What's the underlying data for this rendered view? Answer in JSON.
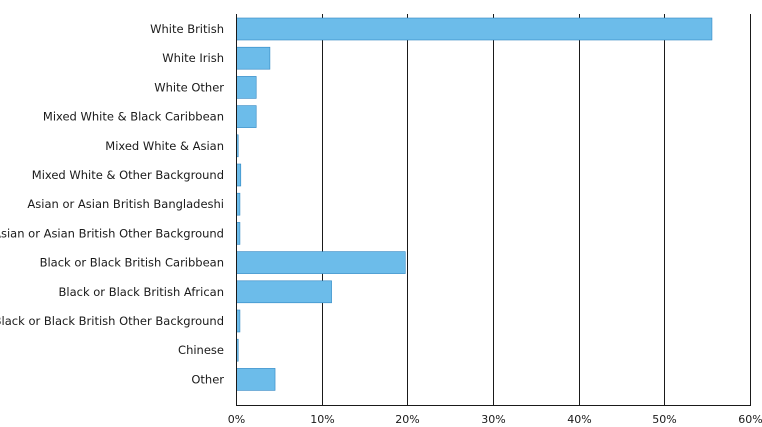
{
  "chart_data": {
    "type": "bar",
    "orientation": "horizontal",
    "title": "",
    "xlabel": "",
    "ylabel": "",
    "categories": [
      "White British",
      "White Irish",
      "White Other",
      "Mixed White & Black Caribbean",
      "Mixed White & Asian",
      "Mixed White & Other Background",
      "Asian or Asian British Bangladeshi",
      "Asian or Asian British Other Background",
      "Black or Black British Caribbean",
      "Black or Black British African",
      "Black or Black British Other Background",
      "Chinese",
      "Other"
    ],
    "values": [
      55.5,
      3.9,
      2.3,
      2.3,
      0.2,
      0.5,
      0.4,
      0.4,
      19.7,
      11.1,
      0.4,
      0.2,
      4.5
    ],
    "xlim": [
      0,
      60
    ],
    "xticks": [
      0,
      10,
      20,
      30,
      40,
      50,
      60
    ],
    "xtick_labels": [
      "0%",
      "10%",
      "20%",
      "30%",
      "40%",
      "50%",
      "60%"
    ],
    "grid": "vertical",
    "legend": "none",
    "bar_color": "#6cbcea",
    "bar_stroke": "#2f86c2",
    "axis_color": "#1a1a1a"
  }
}
